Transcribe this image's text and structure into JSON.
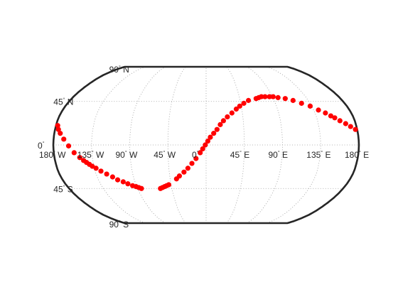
{
  "map": {
    "projection": "Robinson",
    "frame_color": "#262626",
    "grid_color": "#9a9a9a",
    "point_color": "#ff0000",
    "parallel_labels": [
      {
        "lat": 90,
        "deg": "90",
        "hemi": "N"
      },
      {
        "lat": 45,
        "deg": "45",
        "hemi": "N"
      },
      {
        "lat": 0,
        "deg": "0",
        "hemi": ""
      },
      {
        "lat": -45,
        "deg": "45",
        "hemi": "S"
      },
      {
        "lat": -90,
        "deg": "90",
        "hemi": "S"
      }
    ],
    "meridian_labels": [
      {
        "lon": -180,
        "deg": "180",
        "hemi": "W"
      },
      {
        "lon": -135,
        "deg": "135",
        "hemi": "W"
      },
      {
        "lon": -90,
        "deg": "90",
        "hemi": "W"
      },
      {
        "lon": -45,
        "deg": "45",
        "hemi": "W"
      },
      {
        "lon": 0,
        "deg": "0",
        "hemi": ""
      },
      {
        "lon": 45,
        "deg": "45",
        "hemi": "E"
      },
      {
        "lon": 90,
        "deg": "90",
        "hemi": "E"
      },
      {
        "lon": 135,
        "deg": "135",
        "hemi": "E"
      },
      {
        "lon": 180,
        "deg": "180",
        "hemi": "E"
      }
    ],
    "points": [
      [
        -178,
        20
      ],
      [
        -176,
        16
      ],
      [
        -173,
        12
      ],
      [
        -168,
        6
      ],
      [
        -162,
        -1
      ],
      [
        -156,
        -8
      ],
      [
        -150,
        -13
      ],
      [
        -146,
        -16
      ],
      [
        -143,
        -18
      ],
      [
        -140,
        -20
      ],
      [
        -137,
        -22
      ],
      [
        -133,
        -24
      ],
      [
        -128,
        -27
      ],
      [
        -122,
        -30
      ],
      [
        -116,
        -33
      ],
      [
        -111,
        -36
      ],
      [
        -105,
        -38
      ],
      [
        -100,
        -40
      ],
      [
        -95,
        -42
      ],
      [
        -91,
        -43
      ],
      [
        -88,
        -44
      ],
      [
        -85,
        -45
      ],
      [
        -60,
        -45
      ],
      [
        -57,
        -44
      ],
      [
        -54,
        -43
      ],
      [
        -51,
        -42
      ],
      [
        -48,
        -41
      ],
      [
        -37,
        -35
      ],
      [
        -33,
        -32
      ],
      [
        -27,
        -28
      ],
      [
        -22,
        -24
      ],
      [
        -17,
        -19
      ],
      [
        -12,
        -14
      ],
      [
        -7,
        -8
      ],
      [
        -4,
        -4
      ],
      [
        -1,
        0
      ],
      [
        2,
        4
      ],
      [
        5,
        8
      ],
      [
        9,
        12
      ],
      [
        13,
        16
      ],
      [
        17,
        21
      ],
      [
        21,
        25
      ],
      [
        26,
        29
      ],
      [
        32,
        33
      ],
      [
        38,
        37
      ],
      [
        43,
        40
      ],
      [
        49,
        43
      ],
      [
        56,
        46
      ],
      [
        67,
        48
      ],
      [
        71,
        49
      ],
      [
        75,
        50
      ],
      [
        80,
        50
      ],
      [
        86,
        50
      ],
      [
        91,
        50
      ],
      [
        97,
        49
      ],
      [
        106,
        48
      ],
      [
        115,
        46
      ],
      [
        124,
        43
      ],
      [
        133,
        40
      ],
      [
        141,
        36
      ],
      [
        148,
        33
      ],
      [
        153,
        30
      ],
      [
        157,
        28
      ],
      [
        162,
        25
      ],
      [
        168,
        22
      ],
      [
        173,
        19
      ],
      [
        178,
        16
      ]
    ]
  }
}
